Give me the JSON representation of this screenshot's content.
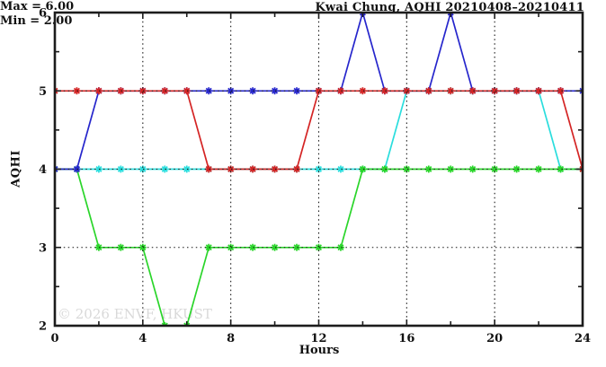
{
  "title": "Kwai Chung, AQHI 20210408–20210411",
  "annotation": {
    "max_label": "Max = 6.00",
    "min_label": "Min = 2.00"
  },
  "watermark": "© 2026 ENVF, HKUST",
  "chart_data": {
    "type": "line",
    "title": "Kwai Chung, AQHI 20210408–20210411",
    "xlabel": "Hours",
    "ylabel": "AQHI",
    "xlim": [
      0,
      24
    ],
    "ylim": [
      2,
      6
    ],
    "x_major_ticks": [
      0,
      4,
      8,
      12,
      16,
      20,
      24
    ],
    "x_minor_ticks": [
      2,
      6,
      10,
      14,
      18,
      22
    ],
    "y_major_ticks": [
      2,
      3,
      4,
      5,
      6
    ],
    "y_minor_ticks": [
      2.5,
      3.5,
      4.5,
      5.5
    ],
    "grid_x": [
      4,
      8,
      12,
      16,
      20
    ],
    "grid_y": [
      3,
      4,
      5
    ],
    "grid_on": true,
    "legend_position": "none",
    "x": [
      0,
      1,
      2,
      3,
      4,
      5,
      6,
      7,
      8,
      9,
      10,
      11,
      12,
      13,
      14,
      15,
      16,
      17,
      18,
      19,
      20,
      21,
      22,
      23,
      24
    ],
    "series": [
      {
        "name": "cyan-day",
        "color": "#2adddd",
        "values": [
          4,
          4,
          4,
          4,
          4,
          4,
          4,
          4,
          4,
          4,
          4,
          4,
          4,
          4,
          4,
          4,
          5,
          5,
          5,
          5,
          5,
          5,
          5,
          4,
          4
        ]
      },
      {
        "name": "green-day",
        "color": "#2ad52a",
        "values": [
          4,
          4,
          3,
          3,
          3,
          2,
          2,
          3,
          3,
          3,
          3,
          3,
          3,
          3,
          4,
          4,
          4,
          4,
          4,
          4,
          4,
          4,
          4,
          4,
          4
        ]
      },
      {
        "name": "blue-day",
        "color": "#2626cc",
        "values": [
          4,
          4,
          5,
          5,
          5,
          5,
          5,
          5,
          5,
          5,
          5,
          5,
          5,
          5,
          6,
          5,
          5,
          5,
          6,
          5,
          5,
          5,
          5,
          5,
          5
        ]
      },
      {
        "name": "red-day",
        "color": "#d42424",
        "values": [
          5,
          5,
          5,
          5,
          5,
          5,
          5,
          4,
          4,
          4,
          4,
          4,
          5,
          5,
          5,
          5,
          5,
          5,
          5,
          5,
          5,
          5,
          5,
          5,
          4
        ]
      }
    ],
    "stats": {
      "max": 6.0,
      "min": 2.0
    }
  }
}
